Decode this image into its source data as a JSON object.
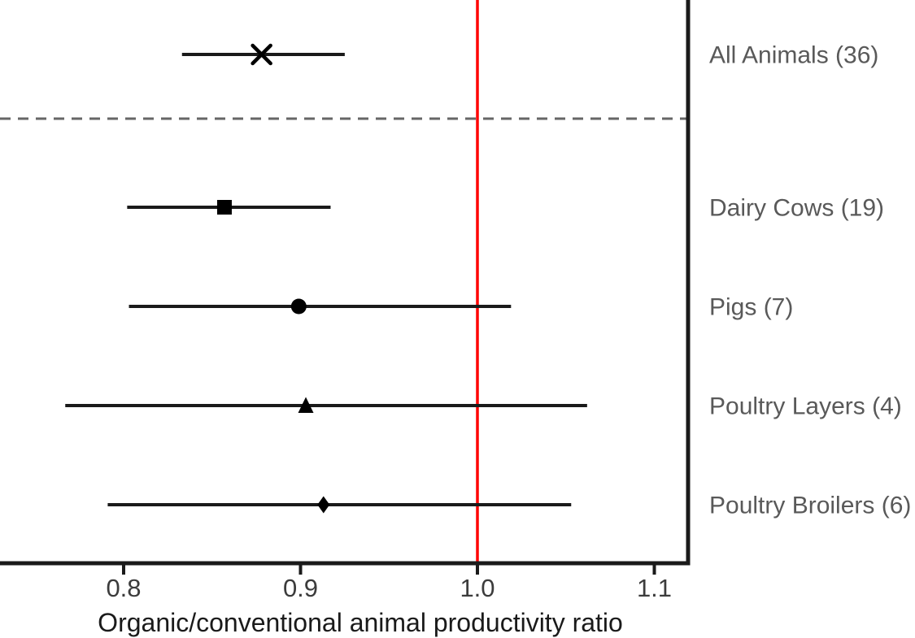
{
  "figure": {
    "background": "#ffffff"
  },
  "chart_data": {
    "type": "scatter",
    "subtype": "forest-plot",
    "title": "",
    "xlabel": "Organic/conventional animal productivity ratio",
    "ylabel": "",
    "xlim": [
      0.73,
      1.12
    ],
    "xticks": [
      "0.8",
      "0.9",
      "1.0",
      "1.1"
    ],
    "xtick_values": [
      0.8,
      0.9,
      1.0,
      1.1
    ],
    "grid": false,
    "legend": false,
    "reference_line": {
      "value": 1.0,
      "color": "#ff0000"
    },
    "separator": {
      "after_row": 0,
      "style": "dashed",
      "color": "#666666"
    },
    "rows": [
      {
        "label": "All Animals (36)",
        "marker": "x",
        "mean": 0.878,
        "ci_low": 0.833,
        "ci_high": 0.925
      },
      {
        "label": "Dairy Cows (19)",
        "marker": "square",
        "mean": 0.857,
        "ci_low": 0.802,
        "ci_high": 0.917
      },
      {
        "label": "Pigs (7)",
        "marker": "circle",
        "mean": 0.899,
        "ci_low": 0.803,
        "ci_high": 1.019
      },
      {
        "label": "Poultry Layers (4)",
        "marker": "triangle",
        "mean": 0.903,
        "ci_low": 0.767,
        "ci_high": 1.062
      },
      {
        "label": "Poultry Broilers (6)",
        "marker": "diamond",
        "mean": 0.913,
        "ci_low": 0.791,
        "ci_high": 1.053
      }
    ],
    "colors": {
      "ci_line": "#1a1a1a",
      "marker": "#000000",
      "axis": "#1a1a1a",
      "row_label_text": "#595959",
      "tick_label_text": "#3c3c3c",
      "axis_title_text": "#1a1a1a",
      "separator": "#666666",
      "reference": "#ff0000"
    }
  }
}
